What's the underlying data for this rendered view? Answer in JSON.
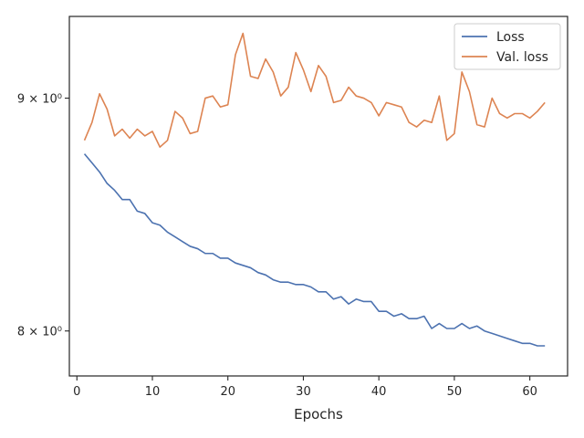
{
  "chart_data": {
    "type": "line",
    "xlabel": "Epochs",
    "ylabel": "",
    "yscale": "log",
    "xlim": [
      -1.0,
      65.0
    ],
    "ylim": [
      7.82,
      9.38
    ],
    "x_ticks": [
      0,
      10,
      20,
      30,
      40,
      50,
      60
    ],
    "y_ticks": [
      {
        "value": 8.0,
        "label": "8 × 10⁰"
      },
      {
        "value": 9.0,
        "label": "9 × 10⁰"
      }
    ],
    "grid": false,
    "legend_position": "top-right",
    "series": [
      {
        "name": "Loss",
        "color": "#4c72b0",
        "x": [
          1,
          2,
          3,
          4,
          5,
          6,
          7,
          8,
          9,
          10,
          11,
          12,
          13,
          14,
          15,
          16,
          17,
          18,
          19,
          20,
          21,
          22,
          23,
          24,
          25,
          26,
          27,
          28,
          29,
          30,
          31,
          32,
          33,
          34,
          35,
          36,
          37,
          38,
          39,
          40,
          41,
          42,
          43,
          44,
          45,
          46,
          47,
          48,
          49,
          50,
          51,
          52,
          53,
          54,
          55,
          56,
          57,
          58,
          59,
          60,
          61,
          62
        ],
        "values": [
          8.75,
          8.71,
          8.67,
          8.62,
          8.59,
          8.55,
          8.55,
          8.5,
          8.49,
          8.45,
          8.44,
          8.41,
          8.39,
          8.37,
          8.35,
          8.34,
          8.32,
          8.32,
          8.3,
          8.3,
          8.28,
          8.27,
          8.26,
          8.24,
          8.23,
          8.21,
          8.2,
          8.2,
          8.19,
          8.19,
          8.18,
          8.16,
          8.16,
          8.13,
          8.14,
          8.11,
          8.13,
          8.12,
          8.12,
          8.08,
          8.08,
          8.06,
          8.07,
          8.05,
          8.05,
          8.06,
          8.01,
          8.03,
          8.01,
          8.01,
          8.03,
          8.01,
          8.02,
          8.0,
          7.99,
          7.98,
          7.97,
          7.96,
          7.95,
          7.95,
          7.94,
          7.94
        ]
      },
      {
        "name": "Val. loss",
        "color": "#dd8452",
        "x": [
          1,
          2,
          3,
          4,
          5,
          6,
          7,
          8,
          9,
          10,
          11,
          12,
          13,
          14,
          15,
          16,
          17,
          18,
          19,
          20,
          21,
          22,
          23,
          24,
          25,
          26,
          27,
          28,
          29,
          30,
          31,
          32,
          33,
          34,
          35,
          36,
          37,
          38,
          39,
          40,
          41,
          42,
          43,
          44,
          45,
          46,
          47,
          48,
          49,
          50,
          51,
          52,
          53,
          54,
          55,
          56,
          57,
          58,
          59,
          60,
          61,
          62
        ],
        "values": [
          8.81,
          8.89,
          9.02,
          8.95,
          8.83,
          8.86,
          8.82,
          8.86,
          8.83,
          8.85,
          8.78,
          8.81,
          8.94,
          8.91,
          8.84,
          8.85,
          9.0,
          9.01,
          8.96,
          8.97,
          9.2,
          9.3,
          9.1,
          9.09,
          9.18,
          9.12,
          9.01,
          9.05,
          9.21,
          9.13,
          9.03,
          9.15,
          9.1,
          8.98,
          8.99,
          9.05,
          9.01,
          9.0,
          8.98,
          8.92,
          8.98,
          8.97,
          8.96,
          8.89,
          8.87,
          8.9,
          8.89,
          9.01,
          8.81,
          8.84,
          9.12,
          9.03,
          8.88,
          8.87,
          9.0,
          8.93,
          8.91,
          8.93,
          8.93,
          8.91,
          8.94,
          8.98
        ]
      }
    ]
  }
}
